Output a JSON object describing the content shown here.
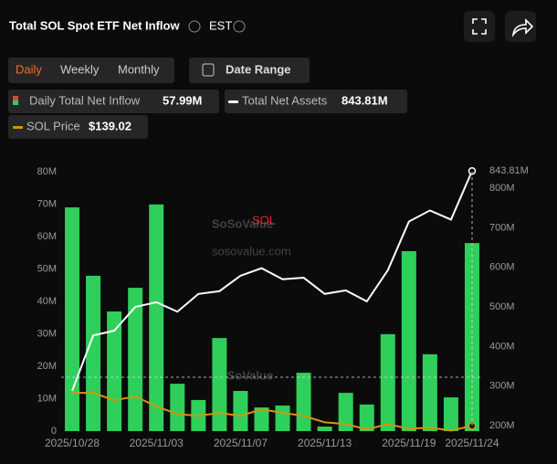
{
  "ui": {
    "timezone": "EST",
    "buttons": [
      "Daily",
      "Weekly",
      "Monthly"
    ],
    "date_range": "Date Range"
  },
  "chart_data": {
    "type": "combo",
    "title": "Total SOL Spot ETF Net Inflow",
    "annotation": "SOL",
    "watermark": {
      "brand": "SoSoValue",
      "url": "sosovalue.com"
    },
    "categories": [
      "2025/10/28",
      null,
      null,
      null,
      "2025/11/03",
      null,
      null,
      null,
      "2025/11/07",
      null,
      null,
      null,
      "2025/11/13",
      null,
      null,
      null,
      "2025/11/19",
      null,
      null,
      "2025/11/24"
    ],
    "series": [
      {
        "name": "Daily Total Net Inflow",
        "type": "bar",
        "color": "#2fcf5c",
        "latest": "57.99M",
        "values": [
          69,
          47.9,
          36.9,
          44.2,
          69.9,
          14.6,
          9.6,
          28.7,
          12.4,
          7.3,
          7.9,
          18,
          1.4,
          11.8,
          8.2,
          29.9,
          55.5,
          23.7,
          10.4,
          57.99
        ]
      },
      {
        "name": "Total Net Assets",
        "type": "line",
        "axis": "y2",
        "color": "#ffffff",
        "latest": "843.81M",
        "values": [
          288,
          428,
          440,
          500,
          512,
          488,
          533,
          540,
          579,
          598,
          570,
          574,
          533,
          542,
          514,
          593,
          716,
          744,
          721,
          843.81
        ]
      },
      {
        "name": "SOL Price",
        "type": "line",
        "axis": "y3",
        "color": "#d4950c",
        "latest": "$139.02",
        "values": [
          195,
          195,
          182.5,
          189,
          172,
          159,
          156,
          161,
          156,
          167,
          161,
          156,
          145,
          142,
          133,
          142,
          134,
          136,
          131,
          139.02
        ]
      }
    ],
    "ylim": [
      0,
      80
    ],
    "yticks": [
      0,
      {
        "value": 10,
        "label": "10M"
      },
      {
        "value": 20,
        "label": "20M"
      },
      {
        "value": 30,
        "label": "30M"
      },
      {
        "value": 40,
        "label": "40M"
      },
      {
        "value": 50,
        "label": "50M"
      },
      {
        "value": 60,
        "label": "60M"
      },
      {
        "value": 70,
        "label": "70M"
      },
      {
        "value": 80,
        "label": "80M"
      }
    ],
    "y2lim": [
      186,
      842
    ],
    "y2ticks": [
      {
        "value": 200,
        "label": "200M"
      },
      {
        "value": 300,
        "label": "300M"
      },
      {
        "value": 400,
        "label": "400M"
      },
      {
        "value": 500,
        "label": "500M"
      },
      {
        "value": 600,
        "label": "600M"
      },
      {
        "value": 700,
        "label": "700M"
      },
      {
        "value": 800,
        "label": "800M"
      }
    ],
    "y3lim": [
      130,
      571
    ]
  }
}
